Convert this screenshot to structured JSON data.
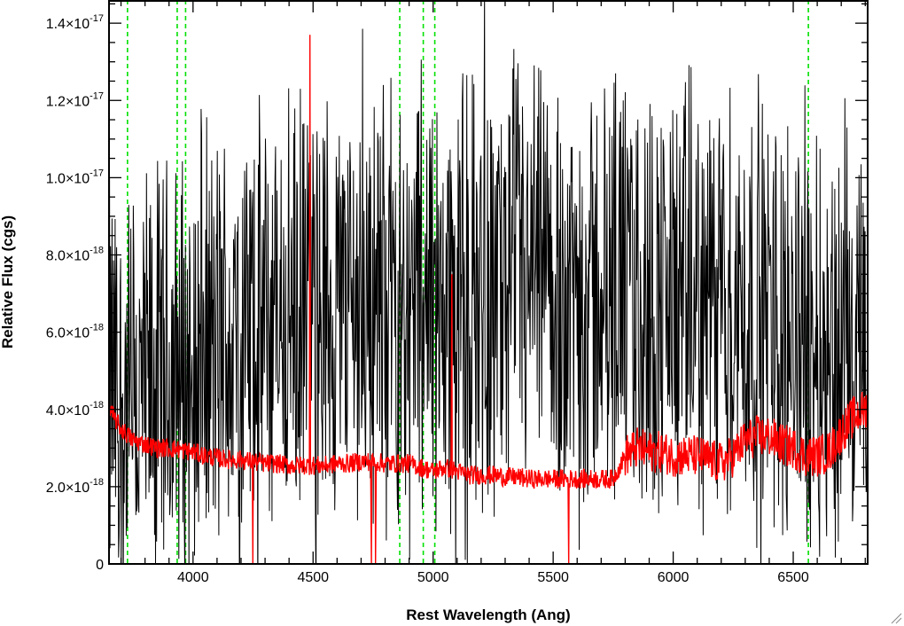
{
  "chart_data": {
    "type": "line",
    "title": "",
    "xlabel": "Rest Wavelength (Ang)",
    "ylabel": "Relative Flux (cgs)",
    "xlim": [
      3650,
      6810
    ],
    "ylim": [
      0,
      1.46e-17
    ],
    "x_ticks": [
      {
        "value": 4000,
        "label": "4000"
      },
      {
        "value": 4500,
        "label": "4500"
      },
      {
        "value": 5000,
        "label": "5000"
      },
      {
        "value": 5500,
        "label": "5500"
      },
      {
        "value": 6000,
        "label": "6000"
      },
      {
        "value": 6500,
        "label": "6500"
      }
    ],
    "y_ticks": [
      {
        "value": 0,
        "mantissa": "0",
        "exponent": ""
      },
      {
        "value": 2e-18,
        "mantissa": "2.0×10",
        "exponent": "-18"
      },
      {
        "value": 4e-18,
        "mantissa": "4.0×10",
        "exponent": "-18"
      },
      {
        "value": 6e-18,
        "mantissa": "6.0×10",
        "exponent": "-18"
      },
      {
        "value": 8e-18,
        "mantissa": "8.0×10",
        "exponent": "-18"
      },
      {
        "value": 1e-17,
        "mantissa": "1.0×10",
        "exponent": "-17"
      },
      {
        "value": 1.2e-17,
        "mantissa": "1.2×10",
        "exponent": "-17"
      },
      {
        "value": 1.4e-17,
        "mantissa": "1.4×10",
        "exponent": "-17"
      }
    ],
    "grid": false,
    "vertical_markers": [
      3727,
      3934,
      3969,
      4861,
      4959,
      5007,
      6563
    ],
    "series": [
      {
        "color": "#000000",
        "x": [
          3650,
          3700,
          3750,
          3800,
          3850,
          3900,
          3950,
          4000,
          4050,
          4100,
          4150,
          4200,
          4250,
          4300,
          4350,
          4400,
          4450,
          4500,
          4550,
          4600,
          4650,
          4700,
          4750,
          4800,
          4850,
          4900,
          4950,
          5000,
          5050,
          5100,
          5150,
          5200,
          5250,
          5300,
          5350,
          5400,
          5450,
          5500,
          5550,
          5600,
          5650,
          5700,
          5750,
          5800,
          5850,
          5900,
          5950,
          6000,
          6050,
          6100,
          6150,
          6200,
          6250,
          6300,
          6350,
          6400,
          6450,
          6500,
          6550,
          6600,
          6650,
          6700,
          6750,
          6800
        ],
        "values": [
          4.5e-18,
          4.2e-18,
          4e-18,
          4.3e-18,
          4.6e-18,
          4.8e-18,
          5e-18,
          5.2e-18,
          5.4e-18,
          5.6e-18,
          5.8e-18,
          6e-18,
          6e-18,
          6.1e-18,
          6.2e-18,
          6.3e-18,
          6.4e-18,
          6.5e-18,
          6.6e-18,
          6.7e-18,
          6.8e-18,
          6.9e-18,
          6.9e-18,
          6.9e-18,
          6.9e-18,
          6.9e-18,
          6.9e-18,
          6.9e-18,
          6.9e-18,
          7e-18,
          7e-18,
          7e-18,
          7e-18,
          7e-18,
          7e-18,
          7e-18,
          7e-18,
          7e-18,
          7e-18,
          7e-18,
          6.9e-18,
          6.9e-18,
          6.9e-18,
          6.9e-18,
          6.9e-18,
          6.8e-18,
          6.8e-18,
          6.8e-18,
          6.8e-18,
          6.7e-18,
          6.7e-18,
          6.6e-18,
          6.6e-18,
          6.5e-18,
          6.5e-18,
          6.4e-18,
          6.3e-18,
          6.2e-18,
          6e-18,
          5.8e-18,
          5.6e-18,
          5.4e-18,
          5.2e-18,
          5e-18
        ],
        "noise_amplitude": 5.5e-18,
        "samples": 1500
      },
      {
        "color": "#ff0000",
        "x": [
          3650,
          3700,
          3750,
          3800,
          3850,
          3900,
          3950,
          4000,
          4050,
          4100,
          4150,
          4200,
          4250,
          4300,
          4350,
          4400,
          4450,
          4500,
          4550,
          4600,
          4650,
          4700,
          4750,
          4800,
          4850,
          4900,
          4950,
          5000,
          5050,
          5100,
          5150,
          5200,
          5250,
          5300,
          5350,
          5400,
          5450,
          5500,
          5550,
          5600,
          5650,
          5700,
          5750,
          5800,
          5850,
          5900,
          5950,
          6000,
          6050,
          6100,
          6150,
          6200,
          6250,
          6300,
          6350,
          6400,
          6450,
          6500,
          6550,
          6600,
          6650,
          6700,
          6750,
          6800
        ],
        "values": [
          4e-18,
          3.5e-18,
          3.2e-18,
          3.1e-18,
          3e-18,
          3e-18,
          2.95e-18,
          2.9e-18,
          2.8e-18,
          2.75e-18,
          2.7e-18,
          2.7e-18,
          2.65e-18,
          2.6e-18,
          2.6e-18,
          2.55e-18,
          2.55e-18,
          2.55e-18,
          2.55e-18,
          2.6e-18,
          2.6e-18,
          2.65e-18,
          2.65e-18,
          2.6e-18,
          2.6e-18,
          2.6e-18,
          2.5e-18,
          2.4e-18,
          2.5e-18,
          2.4e-18,
          2.3e-18,
          2.3e-18,
          2.3e-18,
          2.25e-18,
          2.25e-18,
          2.2e-18,
          2.2e-18,
          2.2e-18,
          2.2e-18,
          2.2e-18,
          2.2e-18,
          2.2e-18,
          2.2e-18,
          2.8e-18,
          3e-18,
          2.9e-18,
          2.9e-18,
          2.8e-18,
          2.8e-18,
          2.8e-18,
          2.7e-18,
          2.6e-18,
          2.8e-18,
          3.2e-18,
          3.3e-18,
          3.3e-18,
          3.1e-18,
          3e-18,
          2.8e-18,
          2.8e-18,
          2.9e-18,
          3.4e-18,
          3.8e-18,
          4e-18
        ],
        "noise_amplitude": 2.5e-19,
        "samples": 1500,
        "spikes": [
          {
            "x": 4487,
            "value": 1.37e-17
          },
          {
            "x": 4249,
            "value": 0
          },
          {
            "x": 4743,
            "value": 0
          },
          {
            "x": 4760,
            "value": 0
          },
          {
            "x": 5565,
            "value": 0
          },
          {
            "x": 5078,
            "value": 7.5e-18
          }
        ]
      }
    ]
  }
}
